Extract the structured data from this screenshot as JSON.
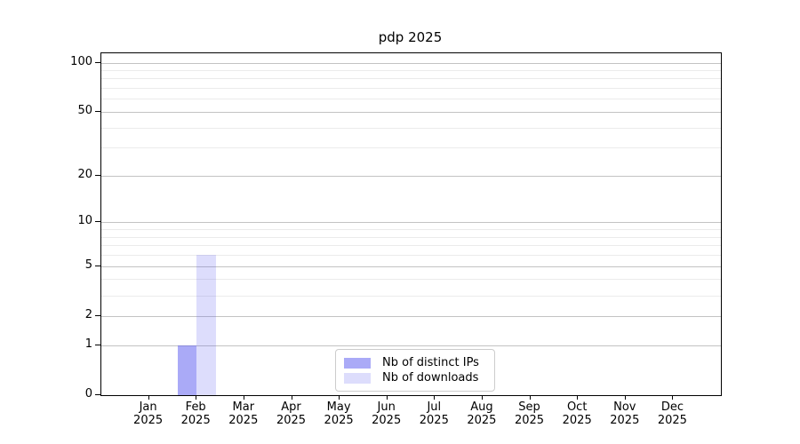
{
  "chart_data": {
    "type": "bar",
    "title": "pdp 2025",
    "categories": [
      "Jan 2025",
      "Feb 2025",
      "Mar 2025",
      "Apr 2025",
      "May 2025",
      "Jun 2025",
      "Jul 2025",
      "Aug 2025",
      "Sep 2025",
      "Oct 2025",
      "Nov 2025",
      "Dec 2025"
    ],
    "series": [
      {
        "name": "Nb of distinct IPs",
        "color": "rgba(85,85,240,0.50)",
        "values": [
          0,
          1,
          0,
          0,
          0,
          0,
          0,
          0,
          0,
          0,
          0,
          0
        ]
      },
      {
        "name": "Nb of downloads",
        "color": "rgba(85,85,240,0.20)",
        "values": [
          0,
          6,
          0,
          0,
          0,
          0,
          0,
          0,
          0,
          0,
          0,
          0
        ]
      }
    ],
    "yscale": "log1p",
    "ylim": [
      0,
      114
    ],
    "xlim": [
      -1,
      12
    ],
    "yticks_major": [
      0,
      1,
      2,
      5,
      10,
      20,
      50,
      100
    ],
    "gridlines_minor": [
      3,
      4,
      6,
      7,
      8,
      9,
      30,
      40,
      60,
      70,
      80,
      90
    ],
    "grid": "on",
    "legend_position": "lower center",
    "colors": {
      "bar_base": "#5555f0",
      "grid_major": "#c3c3c3",
      "grid_minor": "#ebebeb",
      "axis": "#000000",
      "background": "#ffffff"
    }
  }
}
